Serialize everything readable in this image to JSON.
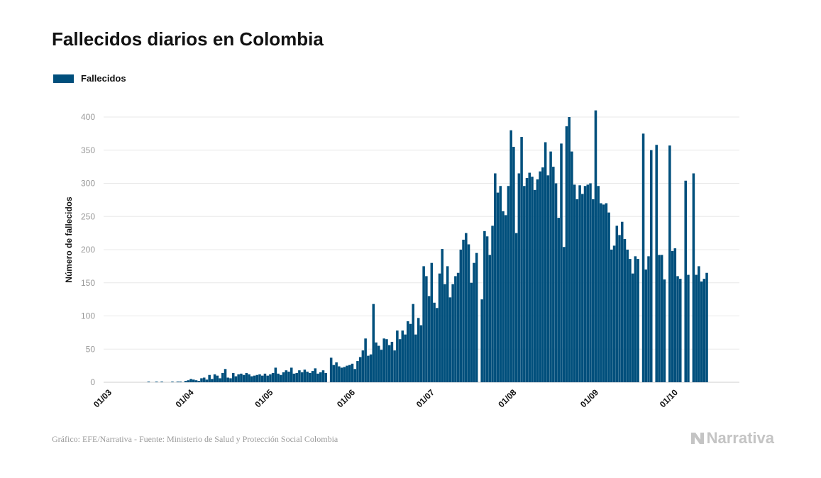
{
  "title": "Fallecidos diarios en Colombia",
  "legend": {
    "label": "Fallecidos",
    "color": "#004f7c"
  },
  "footer": {
    "source": "Gráfico: EFE/Narrativa - Fuente: Ministerio de Salud y Protección Social Colombia",
    "brand": "Narrativa"
  },
  "chart_data": {
    "type": "bar",
    "title": "Fallecidos diarios en Colombia",
    "ylabel": "Número de fallecidos",
    "xlabel": "",
    "ylim": [
      0,
      420
    ],
    "yticks": [
      0,
      50,
      100,
      150,
      200,
      250,
      300,
      350,
      400
    ],
    "grid": true,
    "legend_position": "top-left",
    "x_start": "2020-03-01",
    "xticks": [
      "01/03",
      "01/04",
      "01/05",
      "01/06",
      "01/07",
      "01/08",
      "01/09",
      "01/10"
    ],
    "series": [
      {
        "name": "Fallecidos",
        "color": "#004f7c",
        "values": [
          0,
          0,
          0,
          0,
          0,
          0,
          0,
          0,
          0,
          0,
          0,
          0,
          0,
          0,
          0,
          0,
          1,
          0,
          0,
          1,
          0,
          1,
          0,
          0,
          0,
          1,
          0,
          1,
          1,
          0,
          2,
          3,
          5,
          4,
          3,
          2,
          6,
          7,
          4,
          11,
          5,
          12,
          10,
          6,
          14,
          20,
          7,
          6,
          14,
          9,
          12,
          13,
          11,
          14,
          12,
          9,
          10,
          11,
          12,
          10,
          13,
          10,
          12,
          14,
          22,
          13,
          11,
          15,
          18,
          16,
          22,
          13,
          14,
          18,
          15,
          19,
          16,
          14,
          17,
          21,
          13,
          15,
          18,
          14,
          0,
          37,
          26,
          30,
          24,
          22,
          23,
          25,
          26,
          28,
          20,
          32,
          38,
          48,
          66,
          40,
          42,
          118,
          60,
          55,
          49,
          66,
          65,
          56,
          61,
          48,
          78,
          65,
          78,
          72,
          92,
          88,
          118,
          72,
          97,
          86,
          175,
          160,
          130,
          180,
          120,
          112,
          164,
          201,
          148,
          175,
          128,
          148,
          160,
          165,
          200,
          215,
          225,
          208,
          150,
          180,
          195,
          0,
          125,
          228,
          220,
          192,
          236,
          315,
          286,
          296,
          258,
          252,
          296,
          380,
          355,
          225,
          315,
          370,
          296,
          308,
          316,
          310,
          290,
          306,
          318,
          324,
          362,
          312,
          348,
          325,
          300,
          248,
          360,
          204,
          386,
          400,
          348,
          298,
          276,
          297,
          284,
          296,
          298,
          300,
          276,
          410,
          296,
          270,
          268,
          270,
          256,
          200,
          206,
          236,
          222,
          242,
          216,
          200,
          186,
          164,
          190,
          186,
          0,
          375,
          170,
          190,
          350,
          0,
          358,
          192,
          192,
          155,
          0,
          357,
          198,
          202,
          160,
          156,
          0,
          304,
          162,
          0,
          315,
          162,
          175,
          152,
          156,
          165
        ]
      }
    ]
  }
}
